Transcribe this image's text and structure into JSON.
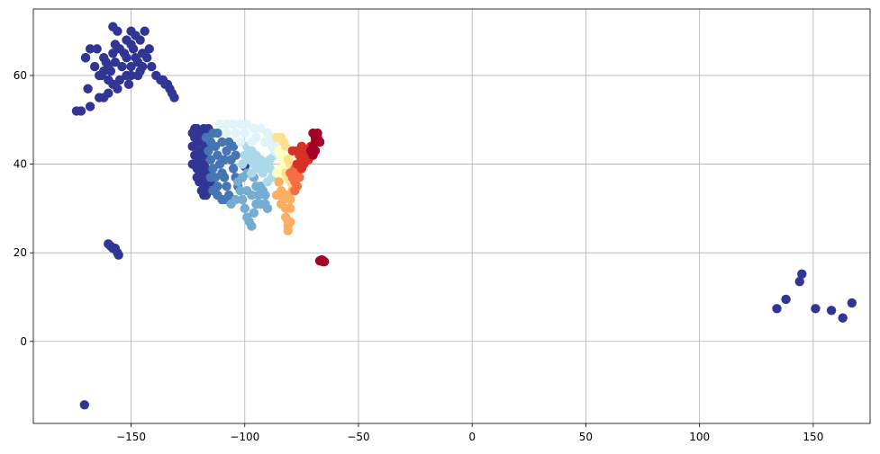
{
  "chart_data": {
    "type": "scatter",
    "title": "",
    "xlabel": "",
    "ylabel": "",
    "xlim": [
      -193,
      175
    ],
    "ylim": [
      -18.5,
      75
    ],
    "xticks": [
      -150,
      -100,
      -50,
      0,
      50,
      100,
      150
    ],
    "xtick_labels": [
      "−150",
      "−100",
      "−50",
      "0",
      "50",
      "100",
      "150"
    ],
    "yticks": [
      0,
      20,
      40,
      60
    ],
    "ytick_labels": [
      "0",
      "20",
      "40",
      "60"
    ],
    "grid": true,
    "colormap": "RdYlBu_r",
    "colors": {
      "dark_blue": "#313695",
      "mid_blue": "#4575b4",
      "light_blue": "#74add1",
      "pale_blue": "#abd9e9",
      "very_pale_blue": "#e0f3f8",
      "pale_yellow": "#ffffbf",
      "light_orange": "#fee090",
      "orange": "#fdae61",
      "red_orange": "#f46d43",
      "red": "#d73027",
      "dark_red": "#a50026"
    },
    "clusters": [
      {
        "color": "#313695",
        "points": [
          [
            -170,
            64
          ],
          [
            -168,
            66
          ],
          [
            -165,
            66
          ],
          [
            -162,
            64
          ],
          [
            -160,
            62
          ],
          [
            -158,
            65
          ],
          [
            -155,
            66
          ],
          [
            -152,
            68
          ],
          [
            -150,
            70
          ],
          [
            -148,
            69
          ],
          [
            -156,
            70
          ],
          [
            -158,
            71
          ],
          [
            -152,
            64
          ],
          [
            -150,
            62
          ],
          [
            -148,
            64
          ],
          [
            -146,
            61
          ],
          [
            -145,
            65
          ],
          [
            -143,
            64
          ],
          [
            -142,
            66
          ],
          [
            -141,
            62
          ],
          [
            -150,
            60
          ],
          [
            -152,
            60
          ],
          [
            -155,
            59
          ],
          [
            -158,
            58
          ],
          [
            -160,
            59
          ],
          [
            -162,
            61
          ],
          [
            -164,
            60
          ],
          [
            -166,
            62
          ],
          [
            -157,
            67
          ],
          [
            -154,
            62
          ],
          [
            -149,
            66
          ],
          [
            -146,
            68
          ],
          [
            -144,
            70
          ],
          [
            -147,
            60
          ],
          [
            -151,
            58
          ],
          [
            -156,
            57
          ],
          [
            -160,
            56
          ],
          [
            -162,
            55
          ],
          [
            -164,
            55
          ],
          [
            -168,
            53
          ],
          [
            -172,
            52
          ],
          [
            -174,
            52
          ],
          [
            -163,
            60
          ],
          [
            -161,
            63
          ],
          [
            -159,
            61
          ],
          [
            -157,
            63
          ],
          [
            -153,
            65
          ],
          [
            -150,
            67
          ],
          [
            -147,
            63
          ],
          [
            -145,
            62
          ],
          [
            -139,
            60
          ],
          [
            -136,
            59
          ],
          [
            -134,
            58
          ],
          [
            -132,
            56
          ],
          [
            -131,
            55
          ],
          [
            -133,
            57
          ],
          [
            -135,
            58
          ],
          [
            -137,
            59
          ],
          [
            -169,
            57
          ],
          [
            -170,
            64
          ],
          [
            -160,
            22
          ],
          [
            -159,
            21.5
          ],
          [
            -158,
            21
          ],
          [
            -157,
            21
          ],
          [
            -156,
            20
          ],
          [
            -155.5,
            19.5
          ],
          [
            -170.5,
            -14.3
          ],
          [
            -122,
            48
          ],
          [
            -120,
            47
          ],
          [
            -118,
            46
          ],
          [
            -117,
            44
          ],
          [
            -121,
            45
          ],
          [
            -123,
            44
          ],
          [
            -122,
            42
          ],
          [
            -120,
            41
          ],
          [
            -118,
            40
          ],
          [
            -119,
            38
          ],
          [
            -121,
            37
          ],
          [
            -120,
            36
          ],
          [
            -118,
            35
          ],
          [
            -117,
            34
          ],
          [
            -119,
            34
          ],
          [
            -121,
            39
          ],
          [
            -123,
            40
          ],
          [
            -122,
            46
          ],
          [
            -120,
            43
          ],
          [
            -118,
            42
          ],
          [
            -117,
            37
          ],
          [
            -117,
            39
          ],
          [
            -115,
            36
          ],
          [
            -116,
            34
          ],
          [
            -118,
            33
          ],
          [
            -117,
            33
          ],
          [
            -123,
            47
          ],
          [
            -121,
            48
          ],
          [
            -118,
            48
          ],
          [
            -116,
            48
          ],
          [
            -117,
            47
          ],
          [
            -119,
            45
          ],
          [
            -121,
            42
          ],
          [
            -119,
            36
          ],
          [
            -116,
            38
          ],
          [
            -100,
            39.5
          ],
          [
            134,
            7.4
          ],
          [
            138,
            9.5
          ],
          [
            144,
            13.5
          ],
          [
            145,
            15.2
          ],
          [
            151,
            7.4
          ],
          [
            158,
            7
          ],
          [
            163,
            5.3
          ],
          [
            167,
            8.7
          ]
        ]
      },
      {
        "color": "#4575b4",
        "points": [
          [
            -117,
            46
          ],
          [
            -115,
            45
          ],
          [
            -113,
            44
          ],
          [
            -112,
            42
          ],
          [
            -111,
            40
          ],
          [
            -110,
            38
          ],
          [
            -109,
            37
          ],
          [
            -108,
            35
          ],
          [
            -107,
            33
          ],
          [
            -106,
            32
          ],
          [
            -112,
            35
          ],
          [
            -113,
            37
          ],
          [
            -114,
            39
          ],
          [
            -115,
            41
          ],
          [
            -116,
            43
          ],
          [
            -114,
            47
          ],
          [
            -112,
            47
          ],
          [
            -110,
            45
          ],
          [
            -108,
            43
          ],
          [
            -106,
            41
          ],
          [
            -105,
            39
          ],
          [
            -104,
            37
          ],
          [
            -103,
            35
          ],
          [
            -108,
            32
          ],
          [
            -110,
            32
          ],
          [
            -112,
            33
          ],
          [
            -114,
            34
          ],
          [
            -115,
            37
          ],
          [
            -109,
            41
          ],
          [
            -107,
            45
          ],
          [
            -105,
            44
          ],
          [
            -104,
            42
          ]
        ]
      },
      {
        "color": "#74add1",
        "points": [
          [
            -103,
            36
          ],
          [
            -102,
            34
          ],
          [
            -101,
            32
          ],
          [
            -100,
            30
          ],
          [
            -99,
            28
          ],
          [
            -98,
            27
          ],
          [
            -97,
            26
          ],
          [
            -96,
            29
          ],
          [
            -95,
            31
          ],
          [
            -94,
            33
          ],
          [
            -93,
            35
          ],
          [
            -92,
            34
          ],
          [
            -91,
            31
          ],
          [
            -90,
            30
          ],
          [
            -104,
            32
          ],
          [
            -106,
            31
          ],
          [
            -99,
            34
          ],
          [
            -97,
            33
          ],
          [
            -95,
            35
          ],
          [
            -101,
            37
          ],
          [
            -99,
            38
          ],
          [
            -96,
            37
          ],
          [
            -93,
            31
          ],
          [
            -91,
            33
          ]
        ]
      },
      {
        "color": "#abd9e9",
        "points": [
          [
            -99,
            44
          ],
          [
            -97,
            43
          ],
          [
            -95,
            42
          ],
          [
            -93,
            41
          ],
          [
            -91,
            40
          ],
          [
            -89,
            39
          ],
          [
            -88,
            37
          ],
          [
            -90,
            36
          ],
          [
            -92,
            38
          ],
          [
            -94,
            39
          ],
          [
            -96,
            40
          ],
          [
            -98,
            41
          ],
          [
            -100,
            42
          ],
          [
            -101,
            40
          ],
          [
            -97,
            38
          ],
          [
            -89,
            41
          ],
          [
            -87,
            42
          ]
        ]
      },
      {
        "color": "#e0f3f8",
        "points": [
          [
            -111,
            49
          ],
          [
            -108,
            49
          ],
          [
            -105,
            49
          ],
          [
            -102,
            49
          ],
          [
            -99,
            49
          ],
          [
            -96,
            48
          ],
          [
            -93,
            48
          ],
          [
            -90,
            47
          ],
          [
            -88,
            46
          ],
          [
            -86,
            45
          ],
          [
            -100,
            47
          ],
          [
            -104,
            47
          ],
          [
            -108,
            47
          ],
          [
            -95,
            46
          ],
          [
            -91,
            45
          ],
          [
            -87,
            43
          ],
          [
            -85,
            42
          ],
          [
            -88,
            44
          ],
          [
            -97,
            45
          ],
          [
            -102,
            45
          ]
        ]
      },
      {
        "color": "#ffffbf",
        "points": [
          [
            -85,
            43
          ],
          [
            -84,
            42
          ],
          [
            -83,
            41
          ],
          [
            -82,
            40
          ],
          [
            -84,
            39
          ],
          [
            -86,
            38
          ],
          [
            -85,
            36
          ],
          [
            -83,
            37
          ],
          [
            -81,
            38
          ],
          [
            -80,
            42
          ]
        ]
      },
      {
        "color": "#fee090",
        "points": [
          [
            -82,
            38
          ],
          [
            -81,
            37
          ],
          [
            -80,
            36
          ],
          [
            -79,
            35
          ],
          [
            -80,
            40
          ],
          [
            -81,
            41
          ],
          [
            -82,
            44
          ],
          [
            -83,
            45
          ],
          [
            -84,
            46
          ],
          [
            -86,
            46
          ]
        ]
      },
      {
        "color": "#fdae61",
        "points": [
          [
            -85,
            36
          ],
          [
            -84,
            34
          ],
          [
            -83,
            32
          ],
          [
            -82,
            30
          ],
          [
            -82,
            28
          ],
          [
            -81,
            27
          ],
          [
            -81,
            26
          ],
          [
            -81,
            25
          ],
          [
            -80,
            27
          ],
          [
            -80,
            30
          ],
          [
            -82,
            33
          ],
          [
            -80,
            32
          ],
          [
            -79,
            34
          ],
          [
            -84,
            31
          ],
          [
            -86,
            33
          ]
        ]
      },
      {
        "color": "#f46d43",
        "points": [
          [
            -79,
            37
          ],
          [
            -78,
            36
          ],
          [
            -77,
            38
          ],
          [
            -76,
            39
          ],
          [
            -78,
            39
          ],
          [
            -80,
            38
          ],
          [
            -76,
            37
          ],
          [
            -77,
            35
          ],
          [
            -78,
            34
          ]
        ]
      },
      {
        "color": "#d73027",
        "points": [
          [
            -77,
            43
          ],
          [
            -76,
            42
          ],
          [
            -75,
            41
          ],
          [
            -74,
            40
          ],
          [
            -73,
            42
          ],
          [
            -75,
            44
          ],
          [
            -72,
            41
          ],
          [
            -71,
            42
          ],
          [
            -77,
            40
          ],
          [
            -79,
            43
          ],
          [
            -74,
            43
          ],
          [
            -75,
            39
          ],
          [
            -71,
            44
          ]
        ]
      },
      {
        "color": "#a50026",
        "points": [
          [
            -70,
            44
          ],
          [
            -69,
            45
          ],
          [
            -68,
            46
          ],
          [
            -68,
            47
          ],
          [
            -67,
            45
          ],
          [
            -69,
            43
          ],
          [
            -70,
            42
          ],
          [
            -71,
            43
          ],
          [
            -69,
            46
          ],
          [
            -70,
            47
          ],
          [
            -67,
            18.2
          ],
          [
            -66.5,
            18.2
          ],
          [
            -66,
            18.1
          ],
          [
            -65.5,
            18
          ],
          [
            -65,
            18
          ],
          [
            -66.2,
            18.4
          ],
          [
            -65.8,
            18.3
          ]
        ]
      }
    ]
  }
}
